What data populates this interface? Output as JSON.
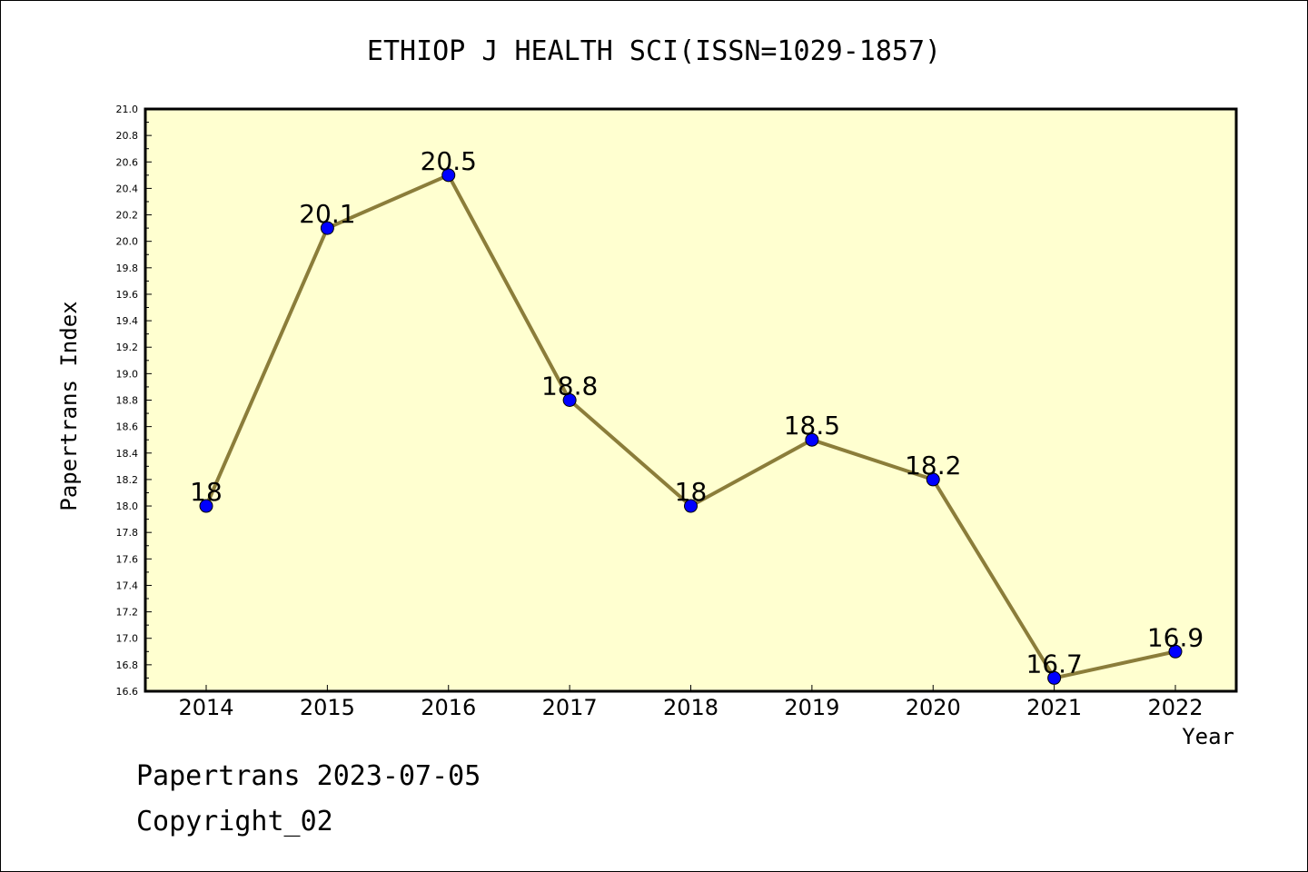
{
  "chart_data": {
    "type": "line",
    "title": "ETHIOP J HEALTH SCI(ISSN=1029-1857)",
    "xlabel": "Year",
    "ylabel": "Papertrans Index",
    "categories": [
      "2014",
      "2015",
      "2016",
      "2017",
      "2018",
      "2019",
      "2020",
      "2021",
      "2022"
    ],
    "series": [
      {
        "values": [
          18,
          20.1,
          20.5,
          18.8,
          18,
          18.5,
          18.2,
          16.7,
          16.9
        ],
        "labels": [
          "18",
          "20.1",
          "20.5",
          "18.8",
          "18",
          "18.5",
          "18.2",
          "16.7",
          "16.9"
        ]
      }
    ],
    "ylim": [
      16.6,
      21.0
    ],
    "yticks": [
      "16.6",
      "16.8",
      "17.0",
      "17.2",
      "17.4",
      "17.6",
      "17.8",
      "18.0",
      "18.2",
      "18.4",
      "18.6",
      "18.8",
      "19.0",
      "19.2",
      "19.4",
      "19.6",
      "19.8",
      "20.0",
      "20.2",
      "20.4",
      "20.6",
      "20.8",
      "21.0"
    ],
    "grid": false,
    "colors": {
      "plot_background": "#ffffd0",
      "line": "#8b7d3a",
      "marker": "#0000ff"
    }
  },
  "footer": {
    "line1": "Papertrans 2023-07-05",
    "line2": "Copyright_02"
  }
}
